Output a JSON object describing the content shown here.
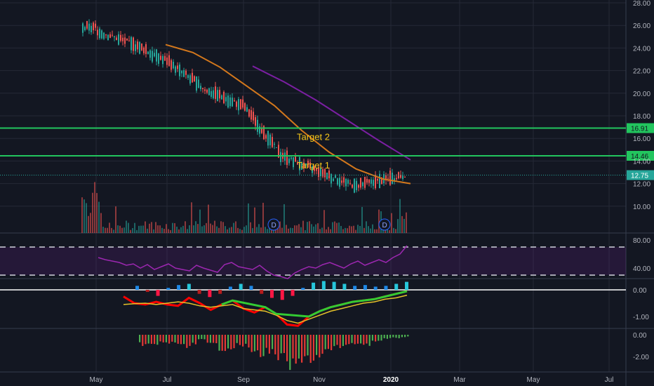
{
  "chart_data": {
    "type": "candlestick",
    "x_axis": {
      "labels": [
        "May",
        "Jul",
        "Sep",
        "Nov",
        "2020",
        "Mar",
        "May",
        "Jul"
      ],
      "bold_label": "2020"
    },
    "price_axis": {
      "ticks": [
        "28.00",
        "26.00",
        "24.00",
        "22.00",
        "20.00",
        "18.00",
        "16.00",
        "14.00",
        "12.00",
        "10.00"
      ],
      "range": [
        8.0,
        28.0
      ]
    },
    "horizontal_levels": [
      {
        "value": 16.91,
        "label": "16.91",
        "color": "#22c55e"
      },
      {
        "value": 14.46,
        "label": "14.46",
        "color": "#22c55e"
      }
    ],
    "last_price": {
      "value": 12.75,
      "label": "12.75"
    },
    "annotations": [
      {
        "text": "Target 2",
        "price": 16.1,
        "color": "#f5c518"
      },
      {
        "text": "Target 1",
        "price": 13.6,
        "color": "#f5c518"
      }
    ],
    "dividend_markers": [
      "D",
      "D"
    ],
    "price_series": {
      "month_points": [
        {
          "month": "May",
          "close": 25.5
        },
        {
          "month": "Jun",
          "close": 24.4
        },
        {
          "month": "Jul",
          "close": 22.8
        },
        {
          "month": "Aug",
          "close": 20.3
        },
        {
          "month": "Sep",
          "close": 18.8
        },
        {
          "month": "Oct",
          "close": 14.5
        },
        {
          "month": "Nov",
          "close": 13.0
        },
        {
          "month": "Dec",
          "close": 11.8
        },
        {
          "month": "2020",
          "close": 12.75
        }
      ],
      "ma_orange": [
        24.3,
        23.6,
        22.3,
        20.6,
        18.9,
        16.7,
        14.8,
        13.3,
        12.4,
        12.0
      ],
      "ma_purple": [
        22.4,
        21.0,
        19.4,
        17.6,
        15.8,
        14.1
      ],
      "colors": {
        "up": "#26a69a",
        "down": "#ef5350",
        "ma_orange": "#d4781c",
        "ma_purple": "#7b1fa2"
      }
    },
    "rsi": {
      "ticks": [
        "80.00",
        "40.00"
      ],
      "upper": 70,
      "lower": 30,
      "color": "#9c27b0",
      "values": [
        55,
        52,
        50,
        48,
        44,
        46,
        40,
        45,
        38,
        42,
        46,
        40,
        38,
        36,
        44,
        40,
        37,
        34,
        45,
        48,
        42,
        40,
        38,
        44,
        36,
        30,
        28,
        25,
        33,
        38,
        42,
        40,
        45,
        48,
        44,
        40,
        46,
        50,
        44,
        48,
        52,
        48,
        55,
        60,
        72
      ]
    },
    "macd": {
      "ticks": [
        "0.00",
        "-1.00"
      ],
      "macd_line": [
        -0.25,
        -0.5,
        -0.55,
        -0.45,
        -0.55,
        -0.6,
        -0.3,
        -0.5,
        -0.75,
        -0.55,
        -0.4,
        -0.7,
        -0.85,
        -0.65,
        -0.9,
        -1.3,
        -1.35,
        -1.0,
        -0.8,
        -0.65,
        -0.55,
        -0.45,
        -0.4,
        -0.35,
        -0.25,
        -0.15,
        -0.05
      ],
      "signal_line": [
        -0.55,
        -0.52,
        -0.5,
        -0.55,
        -0.5,
        -0.45,
        -0.5,
        -0.6,
        -0.65,
        -0.6,
        -0.55,
        -0.7,
        -0.75,
        -0.8,
        -0.95,
        -1.15,
        -1.25,
        -1.1,
        -0.95,
        -0.8,
        -0.7,
        -0.6,
        -0.5,
        -0.45,
        -0.35,
        -0.3,
        -0.2
      ],
      "histogram": [
        0.1,
        -0.05,
        -0.15,
        0.05,
        0.12,
        0.15,
        -0.1,
        -0.18,
        -0.1,
        0.08,
        0.15,
        0.1,
        -0.1,
        -0.2,
        -0.25,
        -0.15,
        0.05,
        0.18,
        0.22,
        0.2,
        0.15,
        0.1,
        0.12,
        0.08,
        0.1,
        0.15,
        0.2
      ],
      "colors": {
        "macd": "#ff0000",
        "signal": "#e6c229",
        "highlight": "#33cc33"
      }
    },
    "histogram_pane": {
      "ticks": [
        "0.00",
        "-2.00"
      ],
      "values": [
        -0.9,
        -1.0,
        -0.7,
        -0.8,
        -1.1,
        -0.9,
        -0.5,
        -0.9,
        -1.3,
        -1.2,
        -1.0,
        -1.5,
        -1.8,
        -1.6,
        -2.2,
        -2.9,
        -2.7,
        -2.3,
        -2.0,
        -1.5,
        -1.2,
        -1.0,
        -0.8,
        -0.9,
        -0.6,
        -0.4,
        -0.3,
        -0.2
      ],
      "colors": {
        "green": "#4caf50",
        "red": "#e53935"
      }
    }
  }
}
